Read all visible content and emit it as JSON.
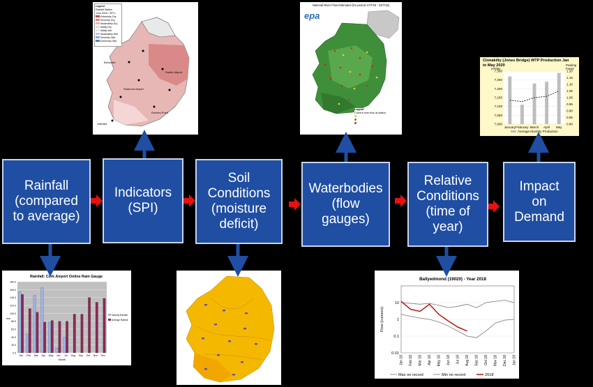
{
  "steps": [
    {
      "label": "Rainfall\n(compared\nto average)"
    },
    {
      "label": "Indicators\n(SPI)"
    },
    {
      "label": "Soil\nConditions\n(moisture\ndeficit)"
    },
    {
      "label": "Waterbodies\n(flow\ngauges)"
    },
    {
      "label": "Relative\nConditions\n(time of\nyear)"
    },
    {
      "label": "Impact\non\nDemand"
    }
  ],
  "colors": {
    "box": "#1f4ea3",
    "connector": "#e81010",
    "arrow": "#1f4ea3"
  },
  "spi_map": {
    "legend_title": "Legend",
    "legend_items": [
      "Rainfall Station",
      "June 2018 - SPI 1",
      "Extremely Dry",
      "Severely Dry",
      "Moderately Dry",
      "Mildly Dry",
      "Mildly Wet",
      "Moderately Wet",
      "Severely Wet",
      "Extremely Wet"
    ],
    "legend_colors": [
      "#c0504d",
      "#d98a88",
      "#e8b5b3",
      "#f3d6d5",
      "#dfe6f1",
      "#b9c9e3",
      "#8fa8d2",
      "#5f7fc0"
    ],
    "place_labels": [
      "Belmullet",
      "Valentia",
      "Shannon Airport",
      "Dublin Airport",
      "Roches Point"
    ]
  },
  "flow_map": {
    "title": "National River Flow Estimates (for period 17/7/18 - 23/7/18)",
    "logo": "epa",
    "legend_title": "Legend",
    "legend_subtitle": "Current river flow at station"
  },
  "wtp_chart": {
    "title": "Clonakilty (Jones Bridge) WTP Production Jan to May 2020",
    "ylabel_left": "m³/day",
    "ylabel_right": "Peaking Factor",
    "legend": "Average Monthly Production",
    "chart_data": {
      "type": "bar",
      "categories": [
        "January",
        "February",
        "March",
        "April",
        "May"
      ],
      "series": [
        {
          "name": "Average Monthly Production",
          "values": [
            7270,
            7110,
            7230,
            7240,
            7290
          ]
        },
        {
          "values": [
            0.98,
            0.97,
            1.0,
            1.01,
            1.05
          ]
        }
      ],
      "yticks_left": [
        "7,000",
        "7,050",
        "7,100",
        "7,150",
        "7,200",
        "7,250",
        "7,300"
      ],
      "yticks_right": [
        "0.80",
        "0.85",
        "0.90",
        "0.95",
        "1.00",
        "1.05",
        "1.10",
        "1.15",
        "1.20"
      ],
      "ylim": [
        7000,
        7300
      ],
      "ylim_right": [
        0.8,
        1.2
      ]
    }
  },
  "rain_chart": {
    "title": "Rainfall: Cork Airport Online Rain Gauge",
    "ylabel": "mm",
    "xlabel": "Month",
    "legend": [
      "Monthly Rainfall",
      "Average Rainfall"
    ],
    "chart_data": {
      "type": "bar",
      "categories": [
        "Jan",
        "Feb",
        "Mar",
        "Apr",
        "May",
        "Jun",
        "Jul",
        "Aug",
        "Sep",
        "Oct",
        "Nov",
        "Dec"
      ],
      "series": [
        {
          "name": "Monthly Rainfall",
          "values": [
            155,
            48,
            145,
            165,
            78,
            12,
            40,
            null,
            null,
            null,
            null,
            null
          ]
        },
        {
          "name": "Average Rainfall",
          "values": [
            148,
            112,
            103,
            78,
            82,
            80,
            80,
            98,
            98,
            140,
            128,
            138
          ]
        }
      ],
      "yticks": [
        "0.0",
        "20.0",
        "40.0",
        "60.0",
        "80.0",
        "100.0",
        "120.0",
        "140.0",
        "160.0",
        "180.0"
      ],
      "ylim": [
        0,
        180
      ]
    }
  },
  "flow_chart": {
    "title": "Ballyedmond (19020)  - Year 2018",
    "ylabel": "Flow (cumecs)",
    "yticks": [
      "0.01",
      "0.1",
      "1",
      "10"
    ],
    "xticks": [
      "Jan 18",
      "Feb 18",
      "Mar 18",
      "Apr 18",
      "May 18",
      "Jun 18",
      "Jul 18",
      "Aug 18",
      "Sep 18",
      "Oct 18",
      "Nov 18",
      "Dec 18",
      "Jan 19"
    ],
    "legend": [
      "Max on record",
      "Min on record",
      "2018"
    ],
    "chart_data": {
      "type": "line",
      "x": [
        "Jan 18",
        "Feb 18",
        "Mar 18",
        "Apr 18",
        "May 18",
        "Jun 18",
        "Jul 18",
        "Aug 18",
        "Sep 18",
        "Oct 18",
        "Nov 18",
        "Dec 18",
        "Jan 19"
      ],
      "series": [
        {
          "name": "Max on record",
          "values": [
            10,
            9,
            8,
            9,
            7,
            5,
            6,
            8,
            5,
            10,
            12,
            14,
            10
          ]
        },
        {
          "name": "Min on record",
          "values": [
            2,
            1.5,
            1.2,
            1,
            0.7,
            0.4,
            0.2,
            0.1,
            0.08,
            0.2,
            0.6,
            0.9,
            1
          ]
        },
        {
          "name": "2018",
          "values": [
            12,
            4,
            3,
            8,
            2,
            0.8,
            0.35,
            0.2,
            null,
            null,
            null,
            null,
            null
          ]
        }
      ],
      "ylim": [
        0.01,
        100
      ],
      "log_y": true
    }
  }
}
